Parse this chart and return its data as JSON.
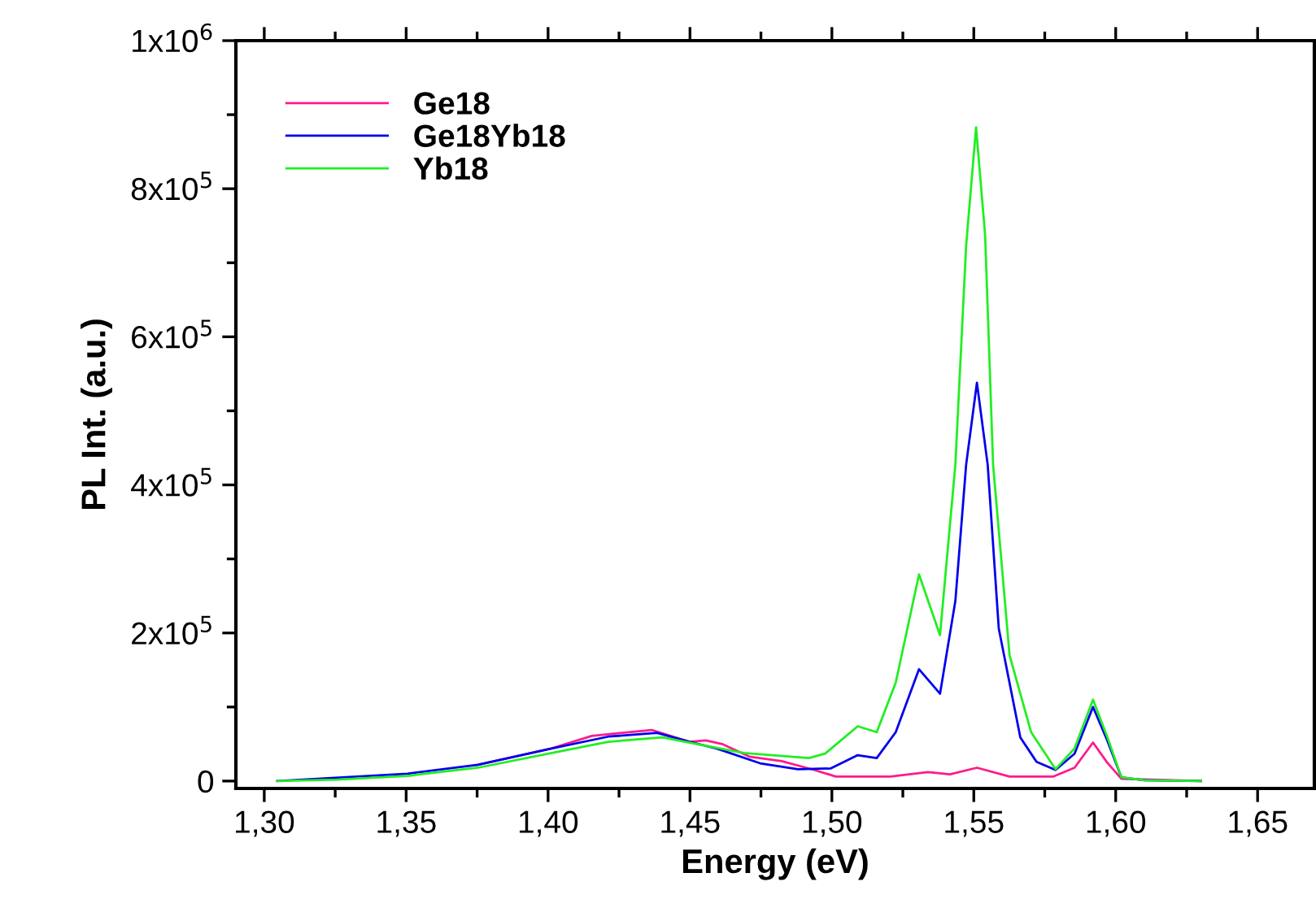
{
  "chart_data": {
    "type": "line",
    "xlabel": "Energy (eV)",
    "ylabel": "PL Int. (a.u.)",
    "xlim": [
      1.29,
      1.67
    ],
    "ylim": [
      -10000,
      1000000
    ],
    "xticks": [
      {
        "value": 1.3,
        "label": "1,30"
      },
      {
        "value": 1.35,
        "label": "1,35"
      },
      {
        "value": 1.4,
        "label": "1,40"
      },
      {
        "value": 1.45,
        "label": "1,45"
      },
      {
        "value": 1.5,
        "label": "1,50"
      },
      {
        "value": 1.55,
        "label": "1,55"
      },
      {
        "value": 1.6,
        "label": "1,60"
      },
      {
        "value": 1.65,
        "label": "1,65"
      }
    ],
    "yticks": [
      0,
      {
        "value": 200000,
        "label": "2x10$^{5}$"
      },
      {
        "value": 400000,
        "label": "4x10$^{5}$"
      },
      {
        "value": 600000,
        "label": "6x10$^{5}$"
      },
      {
        "value": 800000,
        "label": "8x10$^{5}$"
      },
      {
        "value": 1000000,
        "label": "1x10$^{6}$"
      }
    ],
    "legend": "top left",
    "grid": false,
    "marker": "none",
    "line_style": "solid",
    "series": [
      {
        "name": "Ge18",
        "color": "#ff1a8c",
        "x": [
          1.3753,
          1.4002,
          1.4154,
          1.4365,
          1.4498,
          1.4556,
          1.4613,
          1.4709,
          1.4823,
          1.4938,
          1.5014,
          1.5206,
          1.5339,
          1.5416,
          1.5511,
          1.5626,
          1.5779,
          1.5855,
          1.592,
          1.597,
          1.602,
          1.63
        ],
        "values": [
          22000,
          43000,
          61000,
          69000,
          53000,
          55000,
          50000,
          33000,
          27000,
          15000,
          6000,
          6000,
          12000,
          9000,
          18000,
          6000,
          6000,
          18000,
          52000,
          25000,
          3000,
          0
        ]
      },
      {
        "name": "Ge18Yb18",
        "color": "#0000ee",
        "x": [
          1.3046,
          1.3505,
          1.3753,
          1.4002,
          1.4212,
          1.4384,
          1.4498,
          1.4594,
          1.4747,
          1.4881,
          1.4995,
          1.5091,
          1.5158,
          1.5225,
          1.5307,
          1.5381,
          1.5435,
          1.5473,
          1.5511,
          1.5549,
          1.5588,
          1.5664,
          1.5721,
          1.5788,
          1.5855,
          1.592,
          1.597,
          1.602,
          1.61,
          1.63
        ],
        "values": [
          0,
          10000,
          22000,
          43000,
          60000,
          65000,
          53000,
          44000,
          24000,
          16000,
          17000,
          35000,
          31000,
          66000,
          151000,
          118000,
          243000,
          427000,
          538000,
          427000,
          206000,
          59000,
          26000,
          15000,
          37000,
          100000,
          55000,
          5000,
          1000,
          0
        ]
      },
      {
        "name": "Yb18",
        "color": "#22ee22",
        "x": [
          1.3046,
          1.3256,
          1.3505,
          1.3753,
          1.4002,
          1.4212,
          1.4403,
          1.4498,
          1.469,
          1.4919,
          1.4976,
          1.5091,
          1.5158,
          1.5225,
          1.5307,
          1.5381,
          1.5435,
          1.5473,
          1.5508,
          1.554,
          1.5568,
          1.5626,
          1.5702,
          1.5788,
          1.5855,
          1.592,
          1.597,
          1.602,
          1.61,
          1.63
        ],
        "values": [
          0,
          2000,
          7000,
          18000,
          37000,
          53000,
          59000,
          52000,
          38000,
          31000,
          37000,
          74000,
          66000,
          133000,
          279000,
          197000,
          427000,
          723000,
          883000,
          737000,
          427000,
          170000,
          66000,
          16000,
          44000,
          110000,
          60000,
          5000,
          1000,
          0
        ]
      }
    ]
  }
}
